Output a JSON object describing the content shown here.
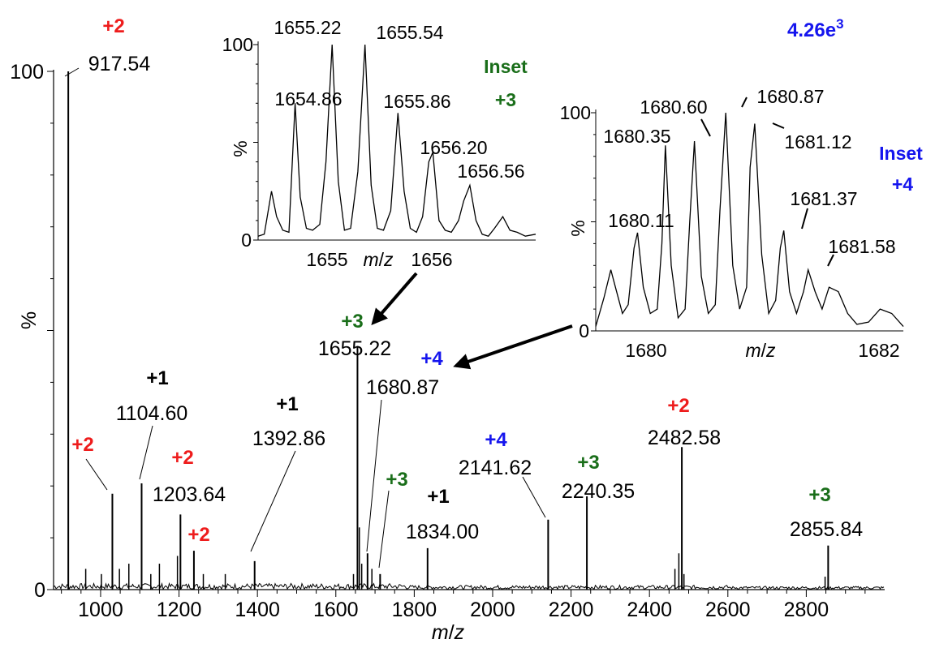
{
  "chart_data": [
    {
      "id": "main",
      "type": "line",
      "xlabel_prefix": "m/z",
      "ylabel": "%",
      "xlim": [
        880,
        3000
      ],
      "ylim": [
        0,
        100
      ],
      "xticks": [
        "1000",
        "1200",
        "1400",
        "1600",
        "1800",
        "2000",
        "2200",
        "2400",
        "2600",
        "2800"
      ],
      "yticks": [
        "0",
        "100"
      ],
      "intensity": {
        "base": "4.26e",
        "exp": "3",
        "color": "#1515ee"
      },
      "peaks": [
        {
          "x": 917.54,
          "y": 100,
          "label": "917.54",
          "charge": "+2",
          "charge_color": "#ee1c1c"
        },
        {
          "x": 1030.0,
          "y": 18.5,
          "label": "",
          "charge": "+2",
          "charge_color": "#ee1c1c"
        },
        {
          "x": 1104.6,
          "y": 20.5,
          "label": "1104.60",
          "charge": "+1",
          "charge_color": "#000000"
        },
        {
          "x": 1203.64,
          "y": 14.5,
          "label": "1203.64",
          "charge": "+2",
          "charge_color": "#ee1c1c"
        },
        {
          "x": 1238.0,
          "y": 7.5,
          "label": "",
          "charge": "+2",
          "charge_color": "#ee1c1c"
        },
        {
          "x": 1392.86,
          "y": 5.5,
          "label": "1392.86",
          "charge": "+1",
          "charge_color": "#000000"
        },
        {
          "x": 1655.22,
          "y": 47,
          "label": "1655.22",
          "charge": "+3",
          "charge_color": "#1a6e1a"
        },
        {
          "x": 1680.87,
          "y": 7,
          "label": "1680.87",
          "charge": "+4",
          "charge_color": "#1515ee"
        },
        {
          "x": 1713.0,
          "y": 3,
          "label": "",
          "charge": "+3",
          "charge_color": "#1a6e1a"
        },
        {
          "x": 1834.0,
          "y": 8,
          "label": "1834.00",
          "charge": "+1",
          "charge_color": "#000000"
        },
        {
          "x": 2141.62,
          "y": 13.5,
          "label": "2141.62",
          "charge": "+4",
          "charge_color": "#1515ee"
        },
        {
          "x": 2240.35,
          "y": 18,
          "label": "2240.35",
          "charge": "+3",
          "charge_color": "#1a6e1a"
        },
        {
          "x": 2482.58,
          "y": 27.5,
          "label": "2482.58",
          "charge": "+2",
          "charge_color": "#ee1c1c"
        },
        {
          "x": 2855.84,
          "y": 8.5,
          "label": "2855.84",
          "charge": "+3",
          "charge_color": "#1a6e1a"
        }
      ],
      "minor_peaks": [
        {
          "x": 962,
          "y": 4
        },
        {
          "x": 1002,
          "y": 3
        },
        {
          "x": 1048,
          "y": 4
        },
        {
          "x": 1072,
          "y": 5
        },
        {
          "x": 1128,
          "y": 3
        },
        {
          "x": 1150,
          "y": 5
        },
        {
          "x": 1196,
          "y": 6.5
        },
        {
          "x": 1262,
          "y": 3
        },
        {
          "x": 1318,
          "y": 3
        },
        {
          "x": 1645,
          "y": 3
        },
        {
          "x": 1660,
          "y": 12
        },
        {
          "x": 1666,
          "y": 5
        },
        {
          "x": 1692,
          "y": 4
        },
        {
          "x": 2465,
          "y": 4
        },
        {
          "x": 2475,
          "y": 7
        },
        {
          "x": 2488,
          "y": 3
        },
        {
          "x": 2848,
          "y": 2.5
        }
      ]
    },
    {
      "id": "inset3",
      "type": "line",
      "title": "Inset",
      "charge": "+3",
      "color": "#1a6e1a",
      "xlabel_prefix": "m/z",
      "ylabel": "%",
      "xlim": [
        1654.5,
        1657.2
      ],
      "ylim": [
        0,
        100
      ],
      "xticks": [
        "1655",
        "1656"
      ],
      "yticks": [
        "0",
        "100"
      ],
      "series": [
        {
          "x": [
            1654.5,
            1654.56,
            1654.63,
            1654.68,
            1654.74,
            1654.8,
            1654.86,
            1654.91,
            1654.97,
            1655.03,
            1655.1,
            1655.16,
            1655.22,
            1655.28,
            1655.34,
            1655.4,
            1655.47,
            1655.54,
            1655.6,
            1655.66,
            1655.72,
            1655.79,
            1655.86,
            1655.92,
            1655.98,
            1656.04,
            1656.1,
            1656.16,
            1656.2,
            1656.26,
            1656.32,
            1656.38,
            1656.45,
            1656.5,
            1656.56,
            1656.62,
            1656.68,
            1656.74,
            1656.8,
            1656.88,
            1656.95,
            1657.02,
            1657.1,
            1657.2
          ],
          "y": [
            2,
            3,
            25,
            12,
            5,
            4,
            70,
            22,
            6,
            5,
            8,
            40,
            100,
            30,
            5,
            6,
            35,
            100,
            28,
            6,
            5,
            15,
            65,
            25,
            6,
            4,
            12,
            40,
            45,
            10,
            5,
            4,
            10,
            20,
            28,
            10,
            3,
            2,
            6,
            12,
            5,
            4,
            2,
            3
          ]
        }
      ],
      "labels": [
        {
          "x": 1654.86,
          "text": "1654.86"
        },
        {
          "x": 1655.22,
          "text": "1655.22"
        },
        {
          "x": 1655.54,
          "text": "1655.54"
        },
        {
          "x": 1655.86,
          "text": "1655.86"
        },
        {
          "x": 1656.2,
          "text": "1656.20"
        },
        {
          "x": 1656.56,
          "text": "1656.56"
        }
      ]
    },
    {
      "id": "inset4",
      "type": "line",
      "title": "Inset",
      "charge": "+4",
      "color": "#1515ee",
      "xlabel_prefix": "m/z",
      "ylabel": "%",
      "xlim": [
        1679.75,
        1682.4
      ],
      "ylim": [
        0,
        100
      ],
      "xticks": [
        "1680",
        "1682"
      ],
      "yticks": [
        "0",
        "100"
      ],
      "series": [
        {
          "x": [
            1679.75,
            1679.82,
            1679.88,
            1679.93,
            1679.98,
            1680.03,
            1680.08,
            1680.11,
            1680.16,
            1680.22,
            1680.28,
            1680.32,
            1680.35,
            1680.4,
            1680.46,
            1680.52,
            1680.56,
            1680.6,
            1680.66,
            1680.72,
            1680.78,
            1680.82,
            1680.87,
            1680.93,
            1680.99,
            1681.05,
            1681.08,
            1681.12,
            1681.18,
            1681.24,
            1681.3,
            1681.34,
            1681.37,
            1681.42,
            1681.48,
            1681.54,
            1681.58,
            1681.64,
            1681.7,
            1681.76,
            1681.84,
            1681.92,
            1682.0,
            1682.1,
            1682.2,
            1682.3,
            1682.4
          ],
          "y": [
            2,
            15,
            28,
            18,
            8,
            12,
            38,
            45,
            20,
            8,
            10,
            40,
            85,
            30,
            6,
            10,
            50,
            87,
            25,
            8,
            12,
            55,
            100,
            30,
            10,
            20,
            75,
            95,
            35,
            8,
            14,
            38,
            46,
            18,
            8,
            18,
            28,
            18,
            10,
            20,
            18,
            8,
            3,
            4,
            10,
            8,
            2
          ]
        }
      ],
      "labels": [
        {
          "x": 1680.11,
          "text": "1680.11"
        },
        {
          "x": 1680.35,
          "text": "1680.35"
        },
        {
          "x": 1680.6,
          "text": "1680.60"
        },
        {
          "x": 1680.87,
          "text": "1680.87"
        },
        {
          "x": 1681.12,
          "text": "1681.12"
        },
        {
          "x": 1681.37,
          "text": "1681.37"
        },
        {
          "x": 1681.58,
          "text": "1681.58"
        }
      ]
    }
  ]
}
